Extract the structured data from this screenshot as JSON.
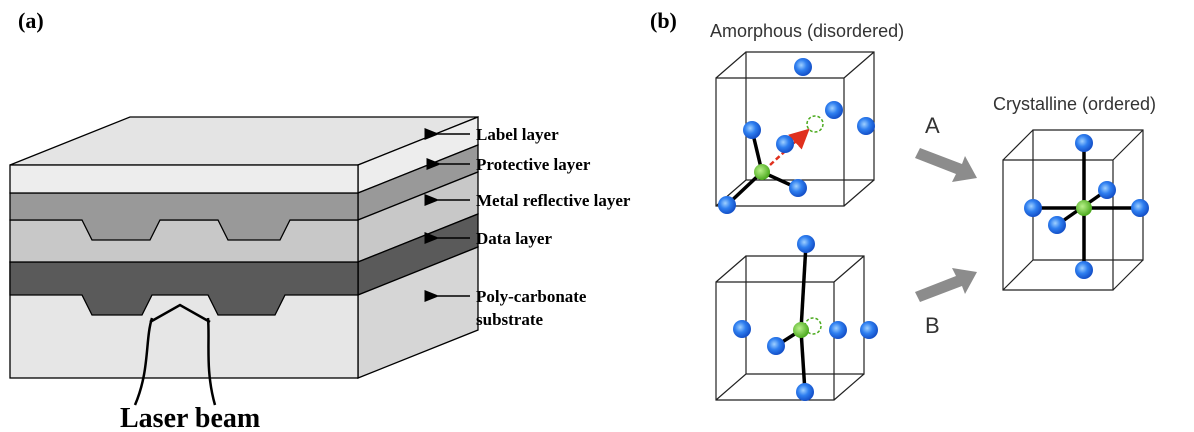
{
  "panel_a": {
    "label": "(a)",
    "layers": [
      "Label layer",
      "Protective layer",
      "Metal reflective layer",
      "Data layer",
      [
        "Poly-carbonate",
        "substrate"
      ]
    ],
    "beam_label": "Laser beam"
  },
  "panel_b": {
    "label": "(b)",
    "amorphous_title": "Amorphous (disordered)",
    "crystalline_title": "Crystalline (ordered)",
    "paths": [
      "A",
      "B"
    ]
  }
}
